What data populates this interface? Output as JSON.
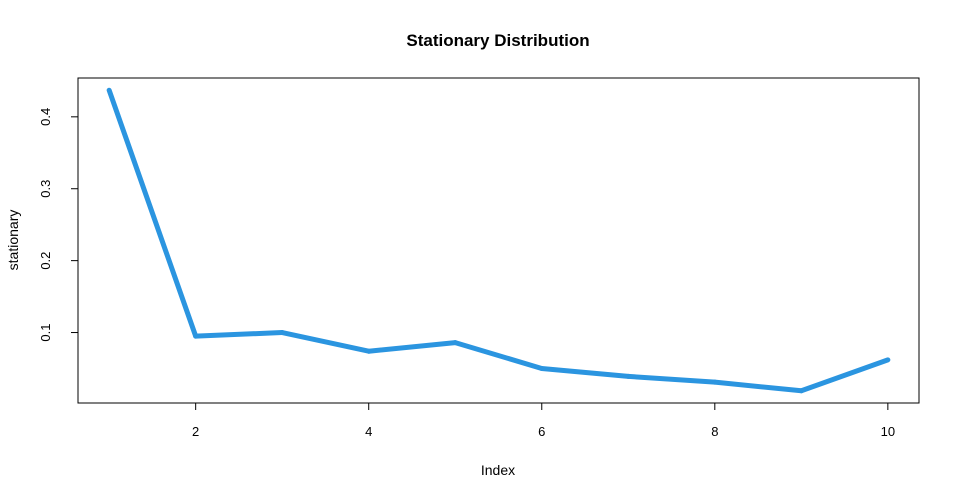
{
  "chart_data": {
    "type": "line",
    "title": "Stationary Distribution",
    "xlabel": "Index",
    "ylabel": "stationary",
    "x": [
      1,
      2,
      3,
      4,
      5,
      6,
      7,
      8,
      9,
      10
    ],
    "series": [
      {
        "values": [
          0.437,
          0.095,
          0.1,
          0.074,
          0.086,
          0.05,
          0.039,
          0.031,
          0.019,
          0.062
        ]
      }
    ],
    "xlim": [
      0.64,
      10.36
    ],
    "ylim": [
      0.002,
      0.454
    ],
    "xticks": [
      2,
      4,
      6,
      8,
      10
    ],
    "yticks": [
      0.1,
      0.2,
      0.3,
      0.4
    ],
    "xtick_labels": [
      "2",
      "4",
      "6",
      "8",
      "10"
    ],
    "ytick_labels": [
      "0.1",
      "0.2",
      "0.3",
      "0.4"
    ],
    "line_color": "#2b95e0",
    "grid": false,
    "legend": "none"
  }
}
